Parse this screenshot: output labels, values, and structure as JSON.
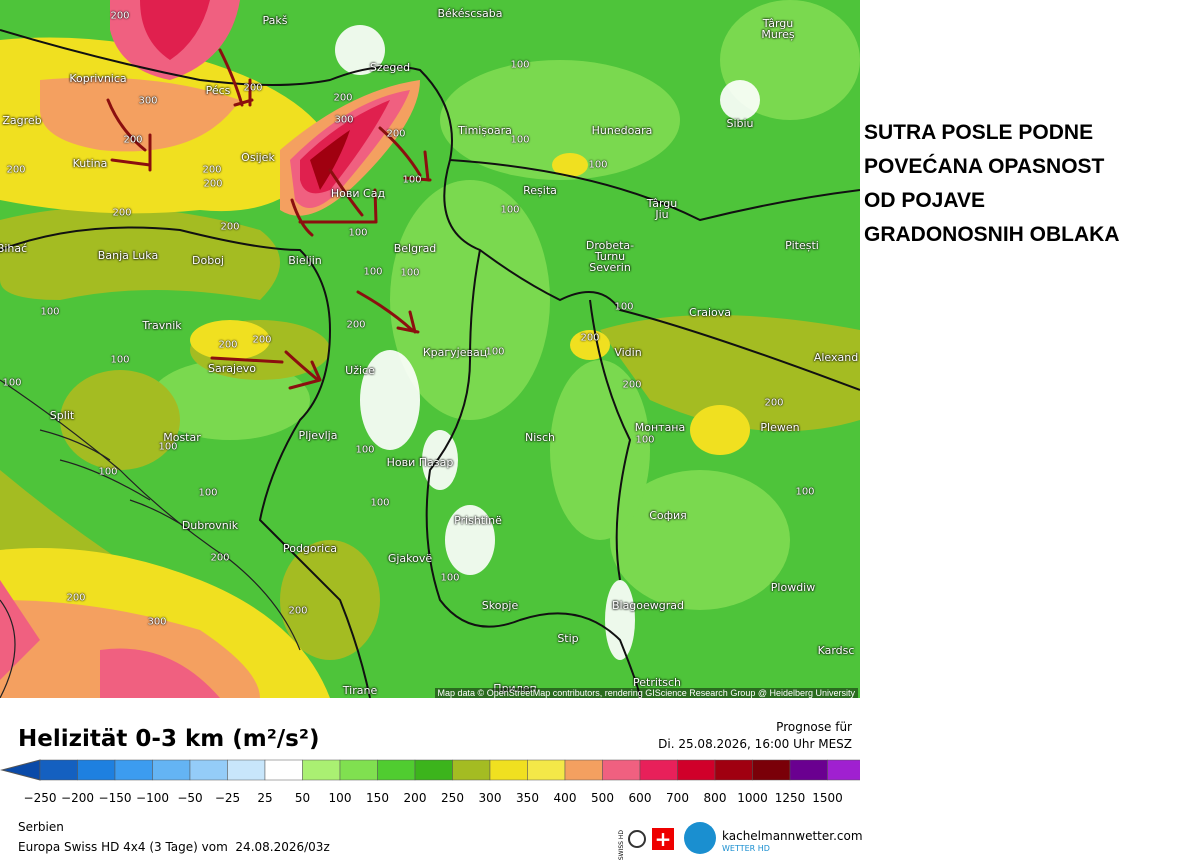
{
  "annotation": {
    "lines": [
      "SUTRA POSLE PODNE",
      "POVEĆANA OPASNOST",
      "OD POJAVE",
      "GRADONOSNIH OBLAKA"
    ]
  },
  "map": {
    "cities": [
      {
        "name": "Pakš"
      },
      {
        "name": "Békéscsaba"
      },
      {
        "name": "Târgu\nMureș"
      },
      {
        "name": "Koprivnica"
      },
      {
        "name": "Pécs"
      },
      {
        "name": "Szeged"
      },
      {
        "name": "Zagreb"
      },
      {
        "name": "Hunedoara"
      },
      {
        "name": "Sibiu"
      },
      {
        "name": "Timișoara"
      },
      {
        "name": "Kutina"
      },
      {
        "name": "Osijek"
      },
      {
        "name": "Нови Сад"
      },
      {
        "name": "Reșita"
      },
      {
        "name": "Târgu\nJiu"
      },
      {
        "name": "Pitești"
      },
      {
        "name": "Bihać"
      },
      {
        "name": "Banja Luka"
      },
      {
        "name": "Doboj"
      },
      {
        "name": "Bieljin"
      },
      {
        "name": "Belgrad"
      },
      {
        "name": "Drobeta-\nTurnu\nSeverin"
      },
      {
        "name": "Craiova"
      },
      {
        "name": "Travnik"
      },
      {
        "name": "Крагујевац"
      },
      {
        "name": "Vidin"
      },
      {
        "name": "Alexand"
      },
      {
        "name": "Sarajevo"
      },
      {
        "name": "Užice"
      },
      {
        "name": "Split"
      },
      {
        "name": "Монтана"
      },
      {
        "name": "Plewen"
      },
      {
        "name": "Mostar"
      },
      {
        "name": "Pljevlja"
      },
      {
        "name": "Nisch"
      },
      {
        "name": "Нови Пазар"
      },
      {
        "name": "Prishtinë"
      },
      {
        "name": "София"
      },
      {
        "name": "Dubrovnik"
      },
      {
        "name": "Podgorica"
      },
      {
        "name": "Gjakovë"
      },
      {
        "name": "Plowdiw"
      },
      {
        "name": "Skopje"
      },
      {
        "name": "Blagoewgrad"
      },
      {
        "name": "Stip"
      },
      {
        "name": "Kardsc"
      },
      {
        "name": "Petritsch"
      },
      {
        "name": "Tirane"
      },
      {
        "name": "Прилеп"
      }
    ],
    "contour_labels": [
      200,
      300,
      200,
      200,
      300,
      200,
      100,
      200,
      200,
      200,
      200,
      200,
      200,
      100,
      100,
      100,
      100,
      100,
      100,
      100,
      200,
      200,
      200,
      100,
      100,
      100,
      100,
      100,
      200,
      200,
      200,
      100,
      100,
      100,
      100,
      100,
      100,
      100,
      200,
      200,
      300,
      200,
      100
    ],
    "attribution": "Map data © OpenStreetMap contributors, rendering GIScience Research Group @ Heidelberg University"
  },
  "legend": {
    "title": "Helizität 0-3 km (m²/s²)",
    "forecast_label": "Prognose für",
    "forecast_time": "Di. 25.08.2026, 16:00 Uhr MESZ",
    "colors": [
      "#0a4aa8",
      "#1460c0",
      "#1e80e0",
      "#3c9cf0",
      "#64b4f4",
      "#94ccf8",
      "#c8e6fb",
      "#ffffff",
      "#aaf072",
      "#80e050",
      "#50cc30",
      "#3cb41c",
      "#a4bc22",
      "#f0e020",
      "#f4e848",
      "#f4a060",
      "#f06080",
      "#e8205a",
      "#d0002a",
      "#a00010",
      "#7a0008",
      "#6a0090",
      "#a020d0",
      "#d060e8",
      "#e8a0f4"
    ],
    "ticks": [
      "−250",
      "−200",
      "−150",
      "−100",
      "−50",
      "−25",
      "25",
      "50",
      "100",
      "150",
      "200",
      "250",
      "300",
      "350",
      "400",
      "500",
      "600",
      "700",
      "800",
      "1000",
      "1250",
      "1500"
    ]
  },
  "footer": {
    "region": "Serbien",
    "model": "Europa Swiss HD 4x4 (3 Tage) vom  24.08.2026/03z",
    "swiss": "SWISS HD",
    "brand": "kachelmannwetter.com",
    "brand_sub": "WETTER HD"
  }
}
